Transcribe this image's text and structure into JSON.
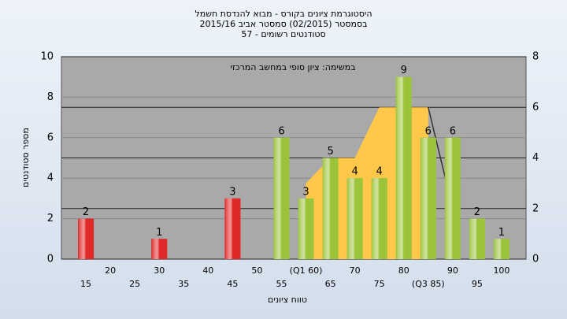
{
  "chart_data": {
    "type": "bar",
    "title": [
      "היסטוגרמת ציונים בקורס - מבוא להנדסת חשמל",
      "בסמסטר  (02/2015)  סמסטר אביב 2015/16",
      "סטודנטים רשומים - 57"
    ],
    "annotation": "במשימה: ציון סופי במחשב המרכזי",
    "y_label": "מספר סטודנטים",
    "x_label": "טווח ציונים",
    "categories": [
      "15",
      "20",
      "25",
      "30",
      "35",
      "40",
      "45",
      "50",
      "55",
      "(Q1 60)",
      "65",
      "70",
      "75",
      "80",
      "(Q3 85)",
      "90",
      "95",
      "100"
    ],
    "values": [
      2,
      0,
      0,
      1,
      0,
      0,
      3,
      0,
      6,
      3,
      5,
      4,
      4,
      9,
      6,
      6,
      2,
      1
    ],
    "colors": [
      "#e02828",
      "#e02828",
      "#e02828",
      "#e02828",
      "#e02828",
      "#e02828",
      "#e02828",
      "#9cc43a",
      "#9cc43a",
      "#9cc43a",
      "#9cc43a",
      "#9cc43a",
      "#9cc43a",
      "#9cc43a",
      "#9cc43a",
      "#9cc43a",
      "#9cc43a",
      "#9cc43a"
    ],
    "area": {
      "color": "#ffc84a",
      "axis": "y2",
      "values": [
        null,
        null,
        null,
        null,
        null,
        null,
        null,
        null,
        null,
        3,
        4,
        4,
        6,
        6,
        6,
        null,
        null,
        null
      ]
    },
    "line": {
      "color": "#333333",
      "axis": "y2",
      "values": [
        null,
        null,
        null,
        null,
        null,
        null,
        null,
        null,
        null,
        null,
        null,
        null,
        null,
        null,
        6,
        2,
        null,
        null
      ]
    },
    "ylim": [
      0,
      10
    ],
    "yticks": [
      0,
      2,
      4,
      6,
      8,
      10
    ],
    "y2lim": [
      0,
      8
    ],
    "y2ticks": [
      0,
      2,
      4,
      6,
      8
    ],
    "grid": true,
    "y2grid": true
  }
}
